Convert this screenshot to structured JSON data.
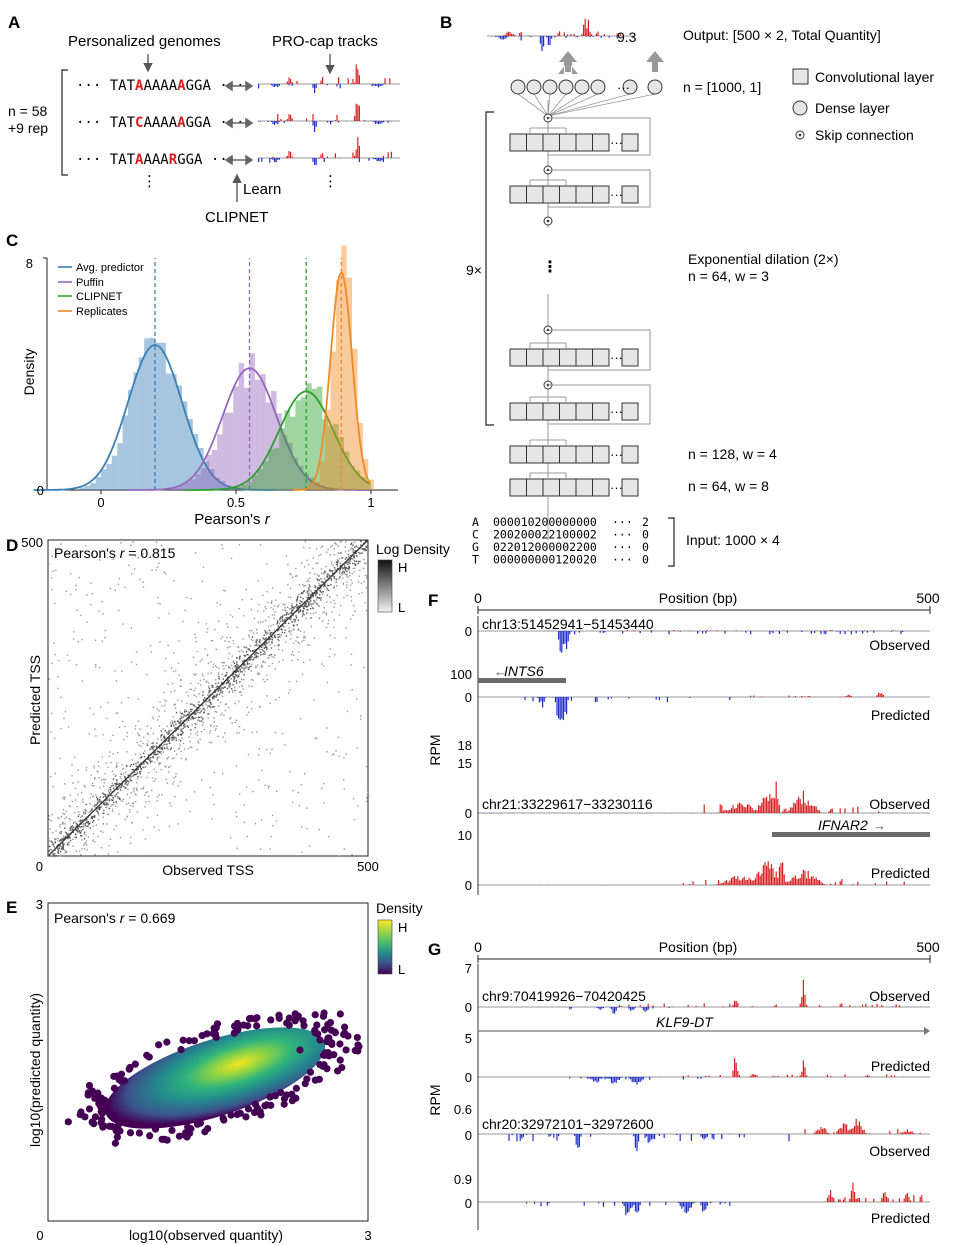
{
  "panels": {
    "A": {
      "label": "A",
      "personalized_genomes": "Personalized genomes",
      "procap_tracks": "PRO-cap tracks",
      "n_line1": "n = 58",
      "n_line2": "+9 rep",
      "seq1": {
        "pre": "··· TAT",
        "a1": "A",
        "mid": "AAAA",
        "a2": "A",
        "post": "GGA ···"
      },
      "seq2": {
        "pre": "··· TAT",
        "a1": "C",
        "mid": "AAAA",
        "a2": "A",
        "post": "GGA ···"
      },
      "seq3": {
        "pre": "··· TAT",
        "a1": "A",
        "mid": "AAA",
        "a2": "R",
        "post": "GGA ···"
      },
      "learn": "Learn",
      "clipnet": "CLIPNET",
      "vdots": "⋮"
    },
    "B": {
      "label": "B",
      "output_value": "9.3",
      "output_text": "Output: [500 × 2, Total Quantity]",
      "dense_n": "n = [1000, 1]",
      "legend_conv": "Convolutional layer",
      "legend_dense": "Dense layer",
      "legend_skip": "Skip connection",
      "repeat": "9×",
      "dilation_line1": "Exponential dilation (2×)",
      "dilation_line2": "n = 64, w = 3",
      "layer_128": "n = 128, w = 4",
      "layer_64": "n = 64, w = 8",
      "input_text": "Input: 1000 × 4",
      "input_rows": [
        {
          "base": "A",
          "seq": "000010200000000",
          "end": "2"
        },
        {
          "base": "C",
          "seq": "200200022100002",
          "end": "0"
        },
        {
          "base": "G",
          "seq": "022012000002200",
          "end": "0"
        },
        {
          "base": "T",
          "seq": "000000000120020",
          "end": "0"
        }
      ],
      "ellipsis": "···"
    },
    "C": {
      "label": "C",
      "xlabel_pre": "Pearson's ",
      "xlabel_r": "r",
      "ylabel": "Density",
      "ytick_top": "8",
      "ytick_bottom": "0",
      "xticks": [
        "0",
        "0.5",
        "1"
      ]
    },
    "D": {
      "label": "D",
      "annot_pre": "Pearson's ",
      "annot_r": "r",
      "annot_val": " = 0.815",
      "xlabel": "Observed TSS",
      "ylabel": "Predicted TSS",
      "tick_max": "500",
      "tick_min": "0",
      "cbar_title": "Log Density",
      "cbar_high": "H",
      "cbar_low": "L"
    },
    "E": {
      "label": "E",
      "annot_pre": "Pearson's ",
      "annot_r": "r",
      "annot_val": " = 0.669",
      "xlabel": "log10(observed quantity)",
      "ylabel": "log10(predicted quantity)",
      "tick_max": "3",
      "tick_min": "0",
      "cbar_title": "Density",
      "cbar_high": "H",
      "cbar_low": "L"
    },
    "F": {
      "label": "F",
      "axis_title": "Position (bp)",
      "axis_min": "0",
      "axis_max": "500",
      "rpm": "RPM",
      "locus1": "chr13:51452941−51453440",
      "gene1": "INTS6",
      "locus2": "chr21:33229617−33230116",
      "gene2": "IFNAR2",
      "observed": "Observed",
      "predicted": "Predicted",
      "t1_ticks": [
        "0",
        "100"
      ],
      "t2_ticks": [
        "0",
        "18"
      ],
      "t3_ticks": [
        "15",
        "0"
      ],
      "t4_ticks": [
        "10",
        "0"
      ]
    },
    "G": {
      "label": "G",
      "axis_title": "Position (bp)",
      "axis_min": "0",
      "axis_max": "500",
      "rpm": "RPM",
      "locus1": "chr9:70419926−70420425",
      "gene1": "KLF9-DT",
      "locus2": "chr20:32972101−32972600",
      "observed": "Observed",
      "predicted": "Predicted",
      "t1_ticks": [
        "7",
        "0"
      ],
      "t2_ticks": [
        "5",
        "0"
      ],
      "t3_ticks": [
        "0.6",
        "0"
      ],
      "t4_ticks": [
        "0.9",
        "0"
      ]
    }
  },
  "chart_data": [
    {
      "type": "area",
      "panel": "C",
      "title": "",
      "xlabel": "Pearson's r",
      "ylabel": "Density",
      "xlim": [
        -0.2,
        1.1
      ],
      "ylim": [
        0,
        8
      ],
      "series": [
        {
          "name": "Avg. predictor",
          "color": "#3a7fb5",
          "mean": 0.2,
          "peak": 5.0,
          "sd": 0.1
        },
        {
          "name": "Puffin",
          "color": "#9467bd",
          "mean": 0.55,
          "peak": 4.2,
          "sd": 0.1
        },
        {
          "name": "CLIPNET",
          "color": "#2ca02c",
          "mean": 0.76,
          "peak": 3.4,
          "sd": 0.1
        },
        {
          "name": "Replicates",
          "color": "#f08a24",
          "mean": 0.89,
          "peak": 7.5,
          "sd": 0.04
        }
      ]
    },
    {
      "type": "scatter",
      "panel": "D",
      "title": "",
      "xlabel": "Observed TSS",
      "ylabel": "Predicted TSS",
      "xlim": [
        0,
        500
      ],
      "ylim": [
        0,
        500
      ],
      "pearson_r": 0.815
    },
    {
      "type": "scatter",
      "panel": "E",
      "title": "",
      "xlabel": "log10(observed quantity)",
      "ylabel": "log10(predicted quantity)",
      "xlim": [
        0,
        3
      ],
      "ylim": [
        0,
        3
      ],
      "pearson_r": 0.669
    }
  ],
  "colors": {
    "red": "#d62020",
    "blue": "#1f2fc8",
    "track_gray": "#6a6a6a"
  }
}
